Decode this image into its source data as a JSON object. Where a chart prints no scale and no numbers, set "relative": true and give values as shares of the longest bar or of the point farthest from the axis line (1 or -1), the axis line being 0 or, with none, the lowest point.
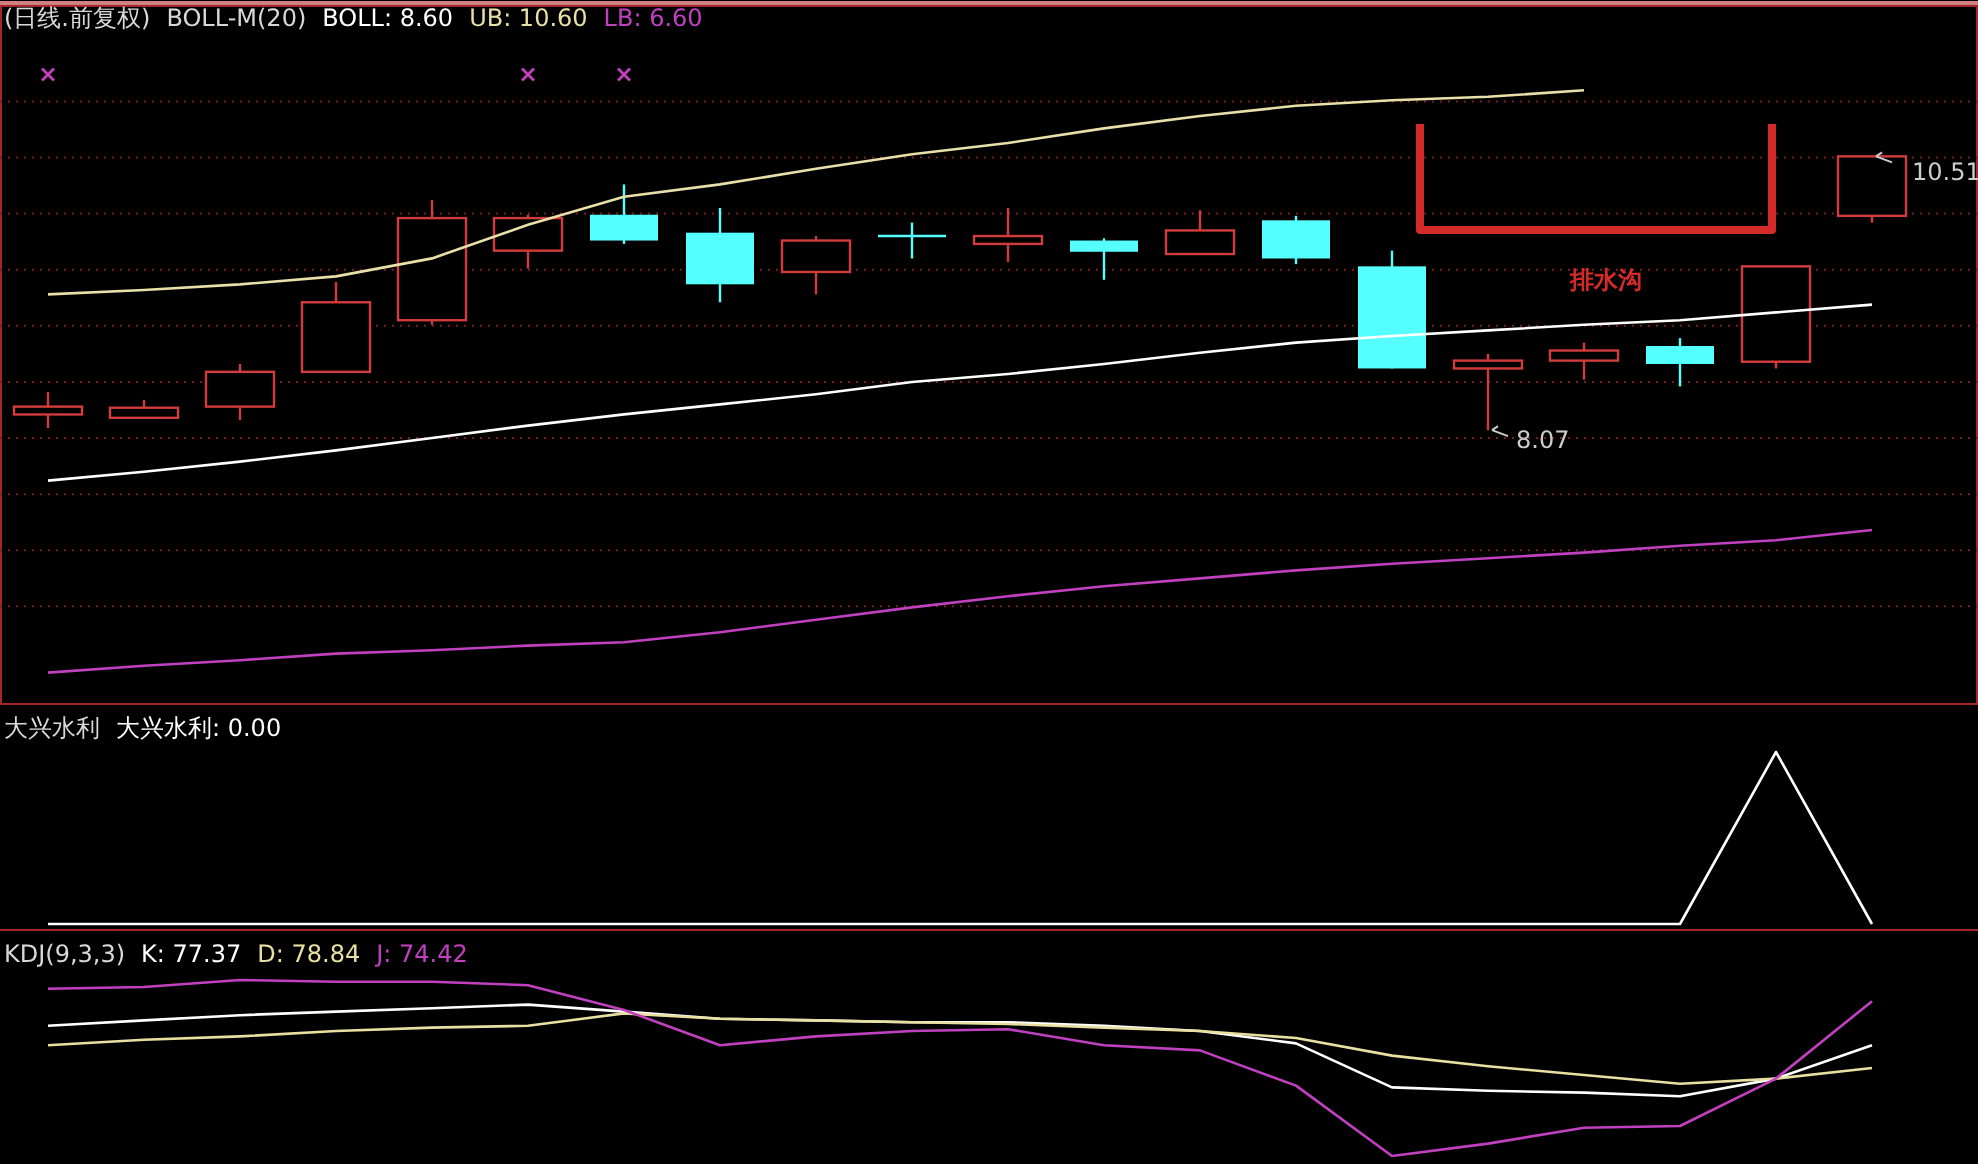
{
  "chart_data": [
    {
      "type": "candlestick",
      "title": "(日线.前复权)",
      "subtitle": "BOLL-M(20)",
      "categories": [
        null,
        null,
        null,
        null,
        null,
        null,
        null,
        null,
        null,
        null,
        null,
        null,
        null,
        null,
        null,
        null,
        null,
        null,
        null,
        null
      ],
      "ohlc": [
        [
          8.21,
          8.41,
          8.09,
          8.28
        ],
        [
          8.18,
          8.34,
          8.18,
          8.27
        ],
        [
          8.28,
          8.66,
          8.16,
          8.59
        ],
        [
          8.59,
          9.39,
          8.59,
          9.21
        ],
        [
          9.05,
          10.12,
          9.01,
          9.96
        ],
        [
          9.67,
          9.99,
          9.51,
          9.96
        ],
        [
          9.99,
          10.26,
          9.73,
          9.76
        ],
        [
          9.83,
          10.05,
          9.21,
          9.37
        ],
        [
          9.48,
          9.8,
          9.28,
          9.76
        ],
        [
          9.8,
          9.92,
          9.6,
          9.8
        ],
        [
          9.73,
          10.05,
          9.57,
          9.8
        ],
        [
          9.76,
          9.78,
          9.41,
          9.66
        ],
        [
          9.64,
          10.03,
          9.64,
          9.85
        ],
        [
          9.94,
          9.98,
          9.55,
          9.6
        ],
        [
          9.53,
          9.67,
          8.62,
          8.62
        ],
        [
          8.62,
          8.75,
          8.07,
          8.69
        ],
        [
          8.69,
          8.85,
          8.52,
          8.78
        ],
        [
          8.82,
          8.89,
          8.46,
          8.66
        ],
        [
          8.68,
          9.53,
          8.62,
          9.53
        ],
        [
          9.98,
          10.51,
          9.92,
          10.51
        ]
      ],
      "colors": [
        "#d23c3c",
        "#d23c3c",
        "#d23c3c",
        "#d23c3c",
        "#d23c3c",
        "#d23c3c",
        "#55ffff",
        "#55ffff",
        "#d23c3c",
        "#55ffff",
        "#d23c3c",
        "#55ffff",
        "#d23c3c",
        "#55ffff",
        "#55ffff",
        "#d23c3c",
        "#d23c3c",
        "#55ffff",
        "#d23c3c",
        "#d23c3c"
      ],
      "series": [
        {
          "type": "line",
          "name": "BOLL: 8.60",
          "color": "#ffffff",
          "values": [
            7.62,
            7.7,
            7.79,
            7.89,
            8.0,
            8.11,
            8.21,
            8.3,
            8.39,
            8.5,
            8.57,
            8.66,
            8.76,
            8.85,
            8.91,
            8.96,
            9.01,
            9.05,
            9.12,
            9.19
          ]
        },
        {
          "type": "line",
          "name": "UB: 10.60",
          "color": "#e8e0a8",
          "values": [
            9.28,
            9.32,
            9.37,
            9.44,
            9.6,
            9.9,
            10.15,
            10.26,
            10.4,
            10.53,
            10.63,
            10.76,
            10.87,
            10.96,
            11.01,
            11.04,
            11.1,
            null,
            null,
            null
          ]
        },
        {
          "type": "line",
          "name": "LB: 6.60",
          "color": "#c040c0",
          "values": [
            5.91,
            5.97,
            6.02,
            6.08,
            6.11,
            6.15,
            6.18,
            6.27,
            6.38,
            6.49,
            6.59,
            6.68,
            6.75,
            6.82,
            6.88,
            6.93,
            6.98,
            7.04,
            7.09,
            7.18
          ]
        },
        {
          "type": "scatter",
          "marker": "cross",
          "color": "#c040c0",
          "values": [
            11.24,
            null,
            null,
            null,
            null,
            11.24,
            11.24,
            null,
            null,
            null,
            null,
            null,
            null,
            null,
            null,
            null,
            null,
            null,
            null,
            null
          ]
        }
      ],
      "ylim": [
        5.63,
        11.85
      ],
      "yticks": [
        {
          "value": 6.5,
          "label": null
        },
        {
          "value": 7,
          "label": null
        },
        {
          "value": 7.5,
          "label": null
        },
        {
          "value": 8,
          "label": null
        },
        {
          "value": 8.5,
          "label": null
        },
        {
          "value": 9,
          "label": null
        },
        {
          "value": 9.5,
          "label": null
        },
        {
          "value": 10,
          "label": null
        },
        {
          "value": 10.5,
          "label": null
        },
        {
          "value": 11,
          "label": null
        }
      ],
      "grid": "y",
      "annotations": [
        "10.51",
        "8.07",
        "排水沟"
      ]
    },
    {
      "type": "line",
      "relative": true,
      "title": "大兴水利",
      "categories": [
        null,
        null,
        null,
        null,
        null,
        null,
        null,
        null,
        null,
        null,
        null,
        null,
        null,
        null,
        null,
        null,
        null,
        null,
        null,
        null
      ],
      "series": [
        {
          "name": "大兴水利: 0.00",
          "color": "#ffffff",
          "values": [
            0,
            0,
            0,
            0,
            0,
            0,
            0,
            0,
            0,
            0,
            0,
            0,
            0,
            0,
            0,
            0,
            0,
            0,
            1,
            0
          ]
        }
      ]
    },
    {
      "type": "line",
      "relative": true,
      "title": "KDJ(9,3,3)",
      "categories": [
        null,
        null,
        null,
        null,
        null,
        null,
        null,
        null,
        null,
        null,
        null,
        null,
        null,
        null,
        null,
        null,
        null,
        null,
        null,
        null
      ],
      "series": [
        {
          "name": "K: 77.37",
          "color": "#ffffff",
          "values": [
            0.74,
            0.77,
            0.8,
            0.82,
            0.84,
            0.86,
            0.82,
            0.78,
            0.77,
            0.76,
            0.76,
            0.74,
            0.71,
            0.64,
            0.39,
            0.37,
            0.36,
            0.34,
            0.44,
            0.63
          ]
        },
        {
          "name": "D: 78.84",
          "color": "#e8e0a0",
          "values": [
            0.63,
            0.66,
            0.68,
            0.71,
            0.73,
            0.74,
            0.81,
            0.78,
            0.77,
            0.76,
            0.75,
            0.73,
            0.71,
            0.67,
            0.57,
            0.51,
            0.46,
            0.41,
            0.44,
            0.5
          ]
        },
        {
          "name": "J: 74.42",
          "color": "#c040c0",
          "values": [
            0.95,
            0.96,
            1,
            0.99,
            0.99,
            0.97,
            0.83,
            0.63,
            0.68,
            0.71,
            0.72,
            0.63,
            0.6,
            0.4,
            0,
            0.07,
            0.16,
            0.17,
            0.44,
            0.88
          ]
        }
      ]
    }
  ]
}
